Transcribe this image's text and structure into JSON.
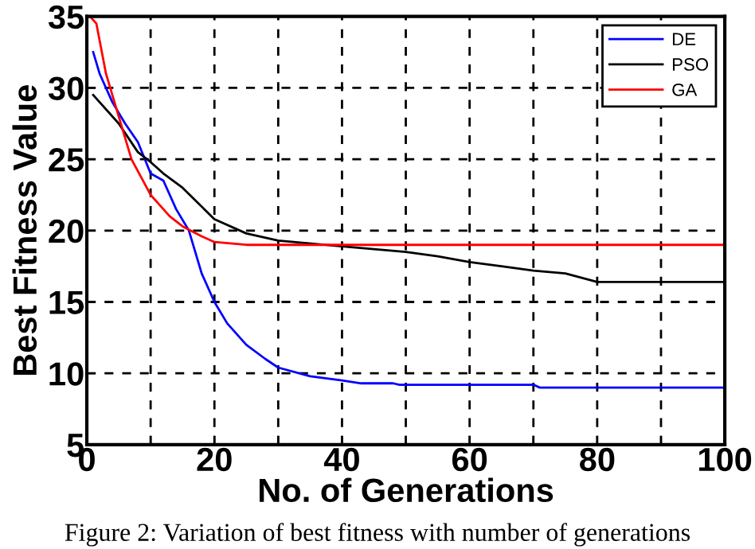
{
  "chart_data": {
    "type": "line",
    "xlabel": "No. of Generations",
    "ylabel": "Best Fitness Value",
    "annotations": [
      "Figure 2: Variation of best fitness with number of generations"
    ],
    "series": [
      {
        "name": "DE",
        "color": "#0000ff",
        "x": [
          1,
          2,
          4,
          6,
          8,
          10,
          12,
          14,
          16,
          18,
          20,
          22,
          25,
          28,
          30,
          35,
          40,
          43,
          48,
          49,
          70,
          71,
          100
        ],
        "values": [
          32.5,
          31,
          29,
          27.5,
          26.2,
          24,
          23.5,
          21.5,
          20,
          17,
          15,
          13.5,
          12,
          11,
          10.4,
          9.8,
          9.5,
          9.3,
          9.3,
          9.2,
          9.2,
          9.0,
          9.0
        ]
      },
      {
        "name": "PSO",
        "color": "#000000",
        "x": [
          1,
          5,
          8,
          10,
          12,
          15,
          20,
          25,
          30,
          40,
          50,
          55,
          60,
          65,
          70,
          75,
          80,
          100
        ],
        "values": [
          29.5,
          27.5,
          25.5,
          24.8,
          24,
          23,
          20.8,
          19.8,
          19.3,
          18.9,
          18.5,
          18.2,
          17.8,
          17.5,
          17.2,
          17,
          16.4,
          16.4
        ]
      },
      {
        "name": "GA",
        "color": "#ff0000",
        "x": [
          0.5,
          1.5,
          3,
          5,
          7,
          10,
          13,
          15,
          18,
          20,
          25,
          100
        ],
        "values": [
          35,
          34.5,
          31,
          28,
          25,
          22.5,
          21,
          20.3,
          19.6,
          19.2,
          19.0,
          19.0
        ]
      }
    ],
    "xlim": [
      0,
      100
    ],
    "ylim": [
      5,
      35
    ],
    "xticks": [
      0,
      {
        "value": 10,
        "label": null
      },
      20,
      {
        "value": 30,
        "label": null
      },
      40,
      {
        "value": 50,
        "label": null
      },
      60,
      {
        "value": 70,
        "label": null
      },
      80,
      {
        "value": 90,
        "label": null
      },
      100
    ],
    "yticks": [
      5,
      10,
      15,
      20,
      25,
      30,
      35
    ],
    "grid": true,
    "legend": "top right",
    "line_style": "solid",
    "marker": "none"
  }
}
